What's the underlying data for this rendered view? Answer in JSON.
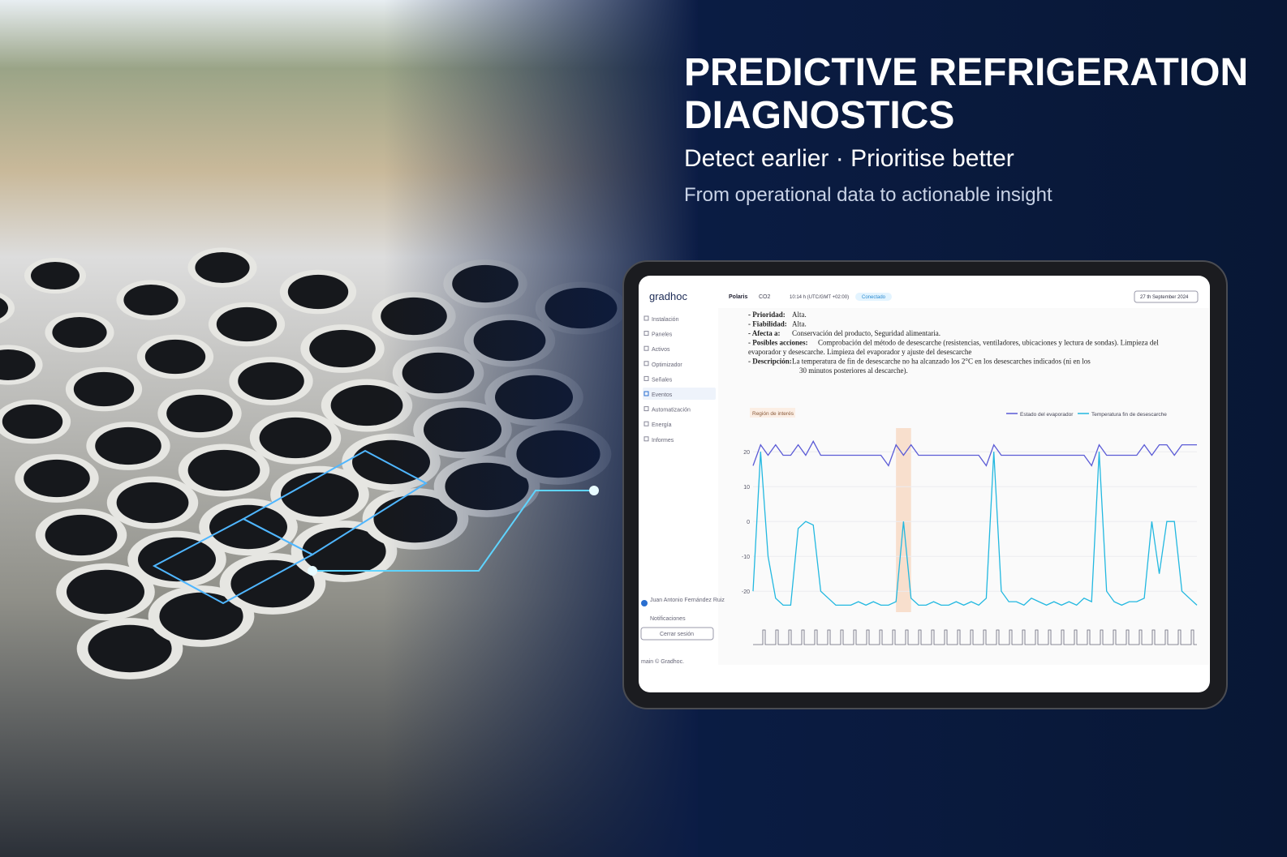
{
  "hero": {
    "title_line1": "PREDICTIVE REFRIGERATION",
    "title_line2": "DIAGNOSTICS",
    "tagline": "Detect earlier · Prioritise better",
    "subtitle": "From operational data to actionable insight"
  },
  "app": {
    "logo": "gradhoc",
    "header": {
      "site": "Polaris",
      "system": "CO2",
      "time": "10:14 h (UTC/GMT +02:00)",
      "status": "Conectado",
      "date": "27 th September 2024"
    },
    "sidebar": [
      "Instalación",
      "Paneles",
      "Activos",
      "Optimizador",
      "Señales",
      "Eventos",
      "Automatización",
      "Energía",
      "Informes"
    ],
    "active_item": "Eventos",
    "user": "Juan Antonio Fernández Ruiz",
    "notifications": "Notificaciones",
    "logout": "Cerrar sesión",
    "footer": "main © Gradhoc.",
    "document": {
      "lines": [
        {
          "label": "- Prioridad:",
          "text": "Alta."
        },
        {
          "label": "- Fiabilidad:",
          "text": "Alta."
        },
        {
          "label": "- Afecta a:",
          "text": "Conservación del producto, Seguridad alimentaria."
        },
        {
          "label": "- Posibles acciones:",
          "text": "Comprobación del método de desescarche (resistencias, ventiladores, ubicaciones y lectura de sondas). Limpieza del"
        },
        {
          "text": "evaporador y desescarche. Limpieza del evaporador y ajuste del desescarche"
        },
        {
          "label": "- Descripción:",
          "text": "La temperatura de fin de desescarche no ha alcanzado los 2°C en los desescarches indicados (ni en los"
        },
        {
          "text": "30 minutos posteriores al descarche)."
        }
      ]
    }
  },
  "chart_data": {
    "type": "line",
    "annotation": {
      "label": "Región de interés",
      "range": [
        19,
        21
      ]
    },
    "ylim": [
      -26,
      24
    ],
    "yticks": [
      20,
      10,
      0,
      -10,
      -20
    ],
    "grid": true,
    "legend": "top-right",
    "series": [
      {
        "name": "Estado del evaporador",
        "color": "#5b5bd6",
        "values": [
          16,
          22,
          19,
          22,
          19,
          19,
          22,
          19,
          23,
          19,
          19,
          19,
          19,
          19,
          19,
          19,
          19,
          19,
          16,
          22,
          19,
          22,
          19,
          19,
          19,
          19,
          19,
          19,
          19,
          19,
          19,
          16,
          22,
          19,
          19,
          19,
          19,
          19,
          19,
          19,
          19,
          19,
          19,
          19,
          19,
          16,
          22,
          19,
          19,
          19,
          19,
          19,
          22,
          19,
          22,
          22,
          19,
          22,
          22,
          22
        ]
      },
      {
        "name": "Temperatura fin de desescarche",
        "color": "#22b8e0",
        "values": [
          -20,
          20,
          -10,
          -22,
          -24,
          -24,
          -2,
          0,
          -1,
          -20,
          -22,
          -24,
          -24,
          -24,
          -23,
          -24,
          -23,
          -24,
          -24,
          -23,
          0,
          -22,
          -24,
          -24,
          -23,
          -24,
          -24,
          -23,
          -24,
          -23,
          -24,
          -22,
          20,
          -20,
          -23,
          -23,
          -24,
          -22,
          -23,
          -24,
          -23,
          -24,
          -23,
          -24,
          -22,
          -23,
          20,
          -20,
          -23,
          -24,
          -23,
          -23,
          -22,
          0,
          -15,
          0,
          0,
          -20,
          -22,
          -24
        ]
      }
    ]
  }
}
